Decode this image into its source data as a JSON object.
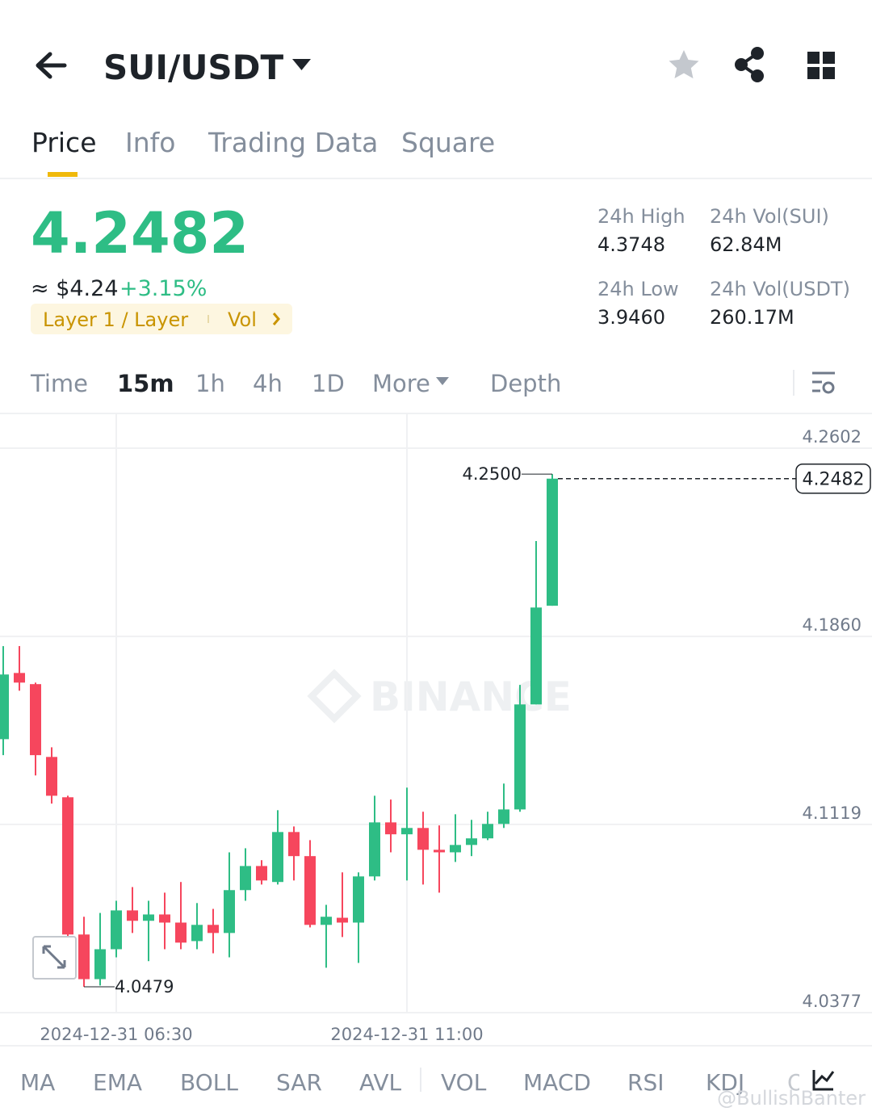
{
  "header": {
    "pair": "SUI/USDT"
  },
  "tabs": [
    "Price",
    "Info",
    "Trading Data",
    "Square"
  ],
  "ticker": {
    "price": "4.2482",
    "usd": "≈ $4.24",
    "change": "+3.15%",
    "tag": "Layer 1 / Layer",
    "tag2": "Vol"
  },
  "stats": [
    {
      "label": "24h High",
      "value": "4.3748"
    },
    {
      "label": "24h Vol(SUI)",
      "value": "62.84M"
    },
    {
      "label": "24h Low",
      "value": "3.9460"
    },
    {
      "label": "24h Vol(USDT)",
      "value": "260.17M"
    }
  ],
  "intervals": [
    "Time",
    "15m",
    "1h",
    "4h",
    "1D",
    "More",
    "Depth"
  ],
  "indicators": [
    "MA",
    "EMA",
    "BOLL",
    "SAR",
    "AVL",
    "VOL",
    "MACD",
    "RSI",
    "KDJ",
    "O"
  ],
  "watermark": "BINANCE",
  "credit": "@BullishBanter",
  "chart_data": {
    "type": "candlestick",
    "categories": [
      null,
      null,
      null,
      null,
      null,
      null,
      null,
      "2024-12-31 06:30",
      null,
      null,
      null,
      null,
      null,
      null,
      null,
      null,
      null,
      null,
      null,
      null,
      null,
      null,
      null,
      null,
      null,
      "2024-12-31 11:00",
      null,
      null,
      null,
      null,
      null,
      null,
      null,
      null,
      null
    ],
    "open": [
      4.1455,
      4.1716,
      4.1672,
      4.1385,
      4.1226,
      4.0685,
      4.0509,
      4.0627,
      4.078,
      4.0739,
      4.0764,
      4.0732,
      4.0659,
      4.0723,
      4.0691,
      4.086,
      4.0955,
      4.0892,
      4.1089,
      4.0994,
      4.0723,
      4.0751,
      4.0732,
      4.0914,
      4.1127,
      4.108,
      4.1105,
      4.1019,
      4.1009,
      4.1038,
      4.1064,
      4.1121,
      4.1178,
      4.1592,
      4.1981
    ],
    "high": [
      4.1822,
      4.1822,
      4.1678,
      4.1423,
      4.1232,
      4.0755,
      4.077,
      4.0818,
      4.0872,
      4.0818,
      4.085,
      4.0892,
      4.0809,
      4.0786,
      4.1009,
      4.1025,
      4.0978,
      4.1175,
      4.1111,
      4.1057,
      4.0802,
      4.093,
      4.093,
      4.1232,
      4.1217,
      4.1264,
      4.1169,
      4.1115,
      4.1159,
      4.1137,
      4.1169,
      4.128,
      4.1669,
      4.2236,
      4.25
    ],
    "low": [
      4.1392,
      4.1646,
      4.1312,
      4.1201,
      4.0675,
      4.0479,
      4.0484,
      4.0595,
      4.0691,
      4.058,
      4.0627,
      4.0627,
      4.0627,
      4.0611,
      4.0595,
      4.0818,
      4.0882,
      4.0882,
      4.0898,
      4.0713,
      4.0554,
      4.0675,
      4.0573,
      4.0898,
      4.1009,
      4.0898,
      4.0882,
      4.085,
      4.0971,
      4.0994,
      4.1057,
      4.1105,
      4.1169,
      4.1592,
      4.1981
    ],
    "close": [
      4.171,
      4.1678,
      4.1392,
      4.1232,
      4.0685,
      4.0509,
      4.0627,
      4.078,
      4.0739,
      4.0764,
      4.0732,
      4.0653,
      4.0723,
      4.0691,
      4.086,
      4.0955,
      4.0898,
      4.1089,
      4.0994,
      4.0723,
      4.0755,
      4.0732,
      4.0914,
      4.1127,
      4.108,
      4.1105,
      4.1019,
      4.1009,
      4.1038,
      4.1064,
      4.1121,
      4.1178,
      4.1592,
      4.1974,
      4.2482
    ],
    "up_color": "#2ebd85",
    "down_color": "#f6465d",
    "ylim": [
      4.0377,
      4.2739
    ],
    "yticks": [
      {
        "value": 4.2602,
        "label": "4.2602"
      },
      {
        "value": 4.186,
        "label": "4.1860"
      },
      {
        "value": 4.1119,
        "label": "4.1119"
      },
      {
        "value": 4.0377,
        "label": "4.0377"
      }
    ],
    "grid": true,
    "last_price": 4.2482,
    "high_label": {
      "value": 4.25,
      "label": "4.2500"
    },
    "low_label": 4.0479
  }
}
